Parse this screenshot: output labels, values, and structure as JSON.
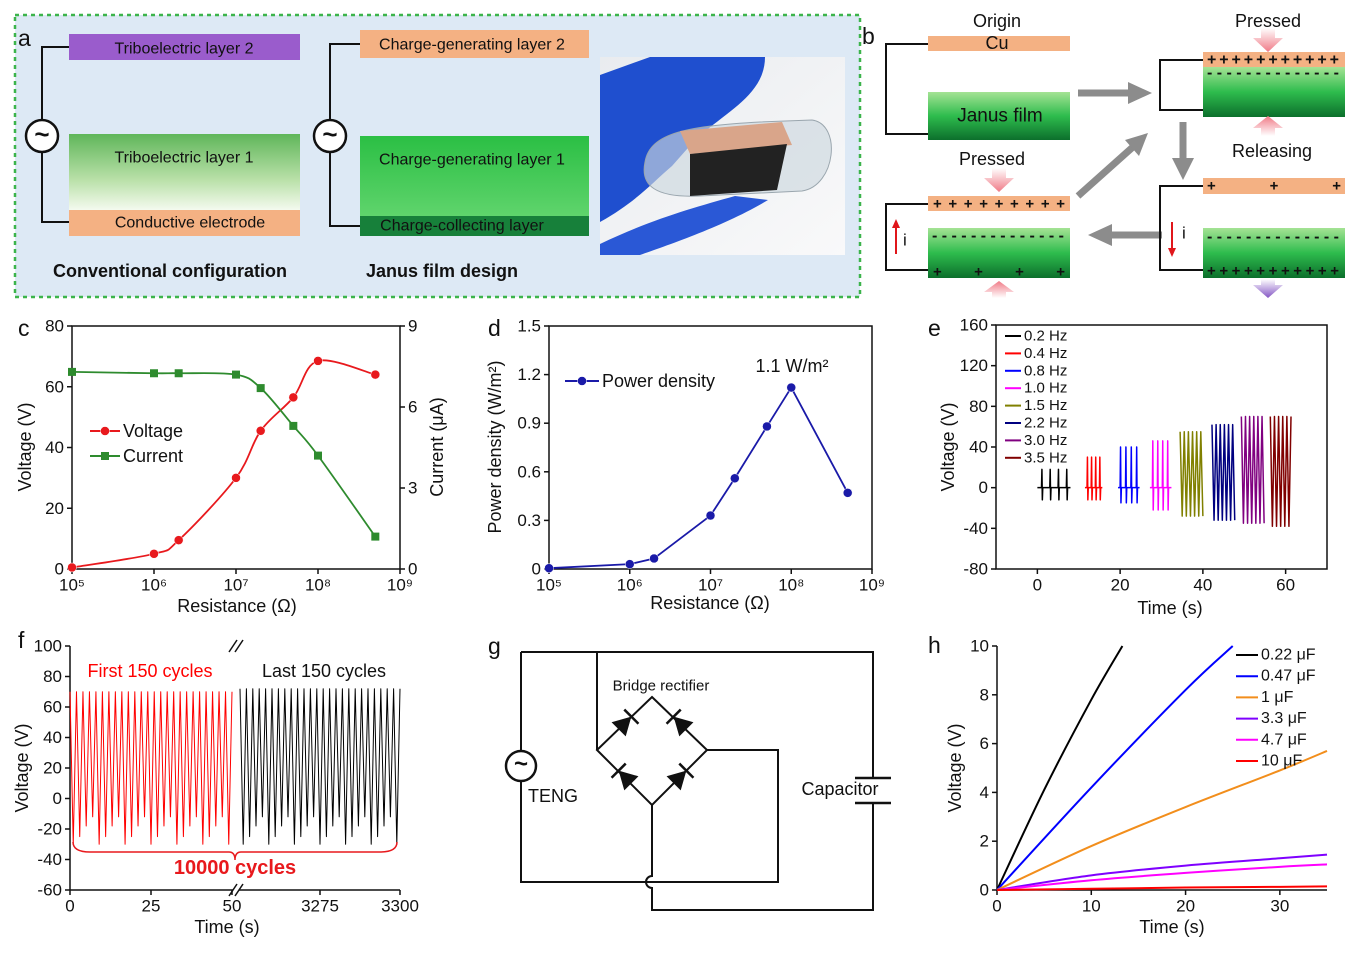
{
  "figure": {
    "a": {
      "label": "a",
      "source": "~",
      "conventional": {
        "top": "Triboelectric layer 2",
        "middle": "Triboelectric layer 1",
        "bottom": "Conductive electrode",
        "caption": "Conventional configuration"
      },
      "janus": {
        "top": "Charge-generating layer 2",
        "middle": "Charge-generating layer 1",
        "bottom": "Charge-collecting layer",
        "caption": "Janus film design"
      }
    },
    "b": {
      "label": "b",
      "origin": "Origin",
      "cu": "Cu",
      "film": "Janus film",
      "pressed": "Pressed",
      "releasing": "Releasing",
      "current": "i",
      "charges": {
        "plus_dense": "+++++++++++",
        "plus_row": "+ + + + + + + + +",
        "minus_row": "- - - - - - - - - - - - - -",
        "plus_sparse": "+ + +",
        "plus_four": "+ + + +"
      }
    },
    "g": {
      "label": "g",
      "rectifier": "Bridge rectifier",
      "source": "TENG",
      "capacitor": "Capacitor",
      "symbol": "~"
    }
  },
  "chart_data": [
    {
      "panel": "c",
      "type": "line",
      "xlog": true,
      "smooth": true,
      "x": [
        100000,
        1000000,
        2000000,
        10000000,
        20000000,
        50000000,
        100000000,
        500000000
      ],
      "series": [
        {
          "name": "Voltage",
          "color": "#e8191d",
          "marker": "circle",
          "values": [
            0.5,
            5,
            9.5,
            30,
            45.5,
            56.5,
            68.5,
            64
          ]
        },
        {
          "name": "Current",
          "color": "#2e8b2e",
          "marker": "square",
          "axis": "y2",
          "values": [
            7.3,
            7.25,
            7.25,
            7.2,
            6.7,
            5.3,
            4.2,
            1.2
          ]
        }
      ],
      "xlim": [
        100000,
        1000000000
      ],
      "xticks": [
        {
          "value": 100000,
          "label": "10⁵"
        },
        {
          "value": 1000000,
          "label": "10⁶"
        },
        {
          "value": 10000000,
          "label": "10⁷"
        },
        {
          "value": 100000000,
          "label": "10⁸"
        },
        {
          "value": 1000000000,
          "label": "10⁹"
        }
      ],
      "ylim": [
        0,
        80
      ],
      "yticks": [
        0,
        20,
        40,
        60,
        80
      ],
      "y2lim": [
        0,
        9
      ],
      "y2ticks": [
        0,
        3,
        6,
        9
      ],
      "xlabel": "Resistance (Ω)",
      "ylabel": "Voltage (V)",
      "y2label": "Current (μA)"
    },
    {
      "panel": "d",
      "type": "line",
      "xlog": true,
      "smooth": false,
      "x": [
        100000,
        1000000,
        2000000,
        10000000,
        20000000,
        50000000,
        100000000,
        500000000
      ],
      "series": [
        {
          "name": "Power density",
          "color": "#1a1aa8",
          "marker": "circle",
          "values": [
            0.005,
            0.03,
            0.065,
            0.33,
            0.56,
            0.88,
            1.12,
            0.47
          ]
        }
      ],
      "xlim": [
        100000,
        1000000000
      ],
      "xticks": [
        {
          "value": 100000,
          "label": "10⁵"
        },
        {
          "value": 1000000,
          "label": "10⁶"
        },
        {
          "value": 10000000,
          "label": "10⁷"
        },
        {
          "value": 100000000,
          "label": "10⁸"
        },
        {
          "value": 1000000000,
          "label": "10⁹"
        }
      ],
      "ylim": [
        0,
        1.5
      ],
      "yticks": [
        0,
        0.3,
        0.6,
        0.9,
        1.2,
        1.5
      ],
      "xlabel": "Resistance (Ω)",
      "ylabel": "Power density (W/m²)",
      "annotations": [
        "1.1 W/m²"
      ]
    },
    {
      "panel": "e",
      "type": "line",
      "smooth": false,
      "series": [
        {
          "name": "0.2 Hz",
          "color": "#000000",
          "x": [
            0,
            1,
            1.1,
            1.2,
            1.3,
            3,
            3.1,
            3.2,
            3.3,
            5,
            5.1,
            5.2,
            5.3,
            7,
            7.1,
            7.2,
            7.3,
            8
          ],
          "values": [
            0,
            0,
            18,
            -12,
            0,
            0,
            18,
            -12,
            0,
            0,
            18,
            -12,
            0,
            0,
            18,
            -12,
            0,
            0
          ]
        },
        {
          "name": "0.4 Hz",
          "color": "#ff0000",
          "x": [
            11.5,
            12,
            12.1,
            12.2,
            12.3,
            13,
            13.1,
            13.2,
            13.3,
            14,
            14.1,
            14.2,
            14.3,
            15,
            15.1,
            15.2,
            15.3,
            15.7
          ],
          "values": [
            0,
            0,
            30,
            -12,
            0,
            0,
            30,
            -12,
            0,
            0,
            30,
            -12,
            0,
            0,
            30,
            -12,
            0,
            0
          ]
        },
        {
          "name": "0.8 Hz",
          "color": "#0000ff",
          "x": [
            19.5,
            20,
            20.1,
            20.2,
            20.3,
            21.3,
            21.4,
            21.5,
            21.6,
            22.6,
            22.7,
            22.8,
            22.9,
            23.9,
            24,
            24.1,
            24.2,
            24.7
          ],
          "values": [
            0,
            0,
            40,
            -15,
            0,
            0,
            40,
            -15,
            0,
            0,
            40,
            -15,
            0,
            0,
            40,
            -15,
            0,
            0
          ]
        },
        {
          "name": "1.0 Hz",
          "color": "#ff00ff",
          "x": [
            27.2,
            27.8,
            27.9,
            28,
            28.1,
            29,
            29.1,
            29.2,
            29.3,
            30.2,
            30.3,
            30.4,
            30.5,
            31.4,
            31.5,
            31.6,
            31.7,
            32.4
          ],
          "values": [
            0,
            0,
            46,
            -22,
            0,
            0,
            46,
            -22,
            0,
            0,
            46,
            -22,
            0,
            0,
            46,
            -22,
            0,
            0
          ]
        },
        {
          "name": "1.5 Hz",
          "color": "#808000",
          "x": [
            34.5,
            35,
            35.5,
            36,
            36.5,
            37,
            37.5,
            38,
            38.5,
            39,
            39.5,
            40
          ],
          "values": [
            55,
            -28,
            55,
            -28,
            55,
            -28,
            55,
            -28,
            55,
            -28,
            55,
            -28
          ]
        },
        {
          "name": "2.2 Hz",
          "color": "#000080",
          "x": [
            42.2,
            42.7,
            43.2,
            43.7,
            44.2,
            44.7,
            45.2,
            45.7,
            46.2,
            46.7,
            47.2,
            47.7
          ],
          "values": [
            62,
            -32,
            62,
            -32,
            62,
            -32,
            62,
            -32,
            62,
            -32,
            62,
            -32
          ]
        },
        {
          "name": "3.0 Hz",
          "color": "#800080",
          "x": [
            49.3,
            49.8,
            50.3,
            50.8,
            51.3,
            51.8,
            52.3,
            52.8,
            53.3,
            53.8,
            54.3,
            54.8
          ],
          "values": [
            70,
            -35,
            70,
            -35,
            70,
            -35,
            70,
            -35,
            70,
            -35,
            70,
            -35
          ]
        },
        {
          "name": "3.5 Hz",
          "color": "#800000",
          "x": [
            56.3,
            56.8,
            57.3,
            57.8,
            58.3,
            58.8,
            59.3,
            59.8,
            60.3,
            60.8,
            61.3
          ],
          "values": [
            70,
            -38,
            70,
            -38,
            70,
            -38,
            70,
            -38,
            70,
            -38,
            70
          ]
        }
      ],
      "xlim": [
        -10,
        70
      ],
      "xticks": [
        0,
        20,
        40,
        60
      ],
      "ylim": [
        -80,
        160
      ],
      "yticks": [
        -80,
        -40,
        0,
        40,
        80,
        120,
        160
      ],
      "xlabel": "Time (s)",
      "ylabel": "Voltage (V)"
    },
    {
      "panel": "f",
      "type": "line",
      "smooth": false,
      "xbreak": [
        50,
        3250
      ],
      "series": [
        {
          "name": "First 150 cycles",
          "color": "#ff0000",
          "x": [
            0,
            1,
            2,
            3,
            4,
            5,
            6,
            7,
            8,
            9,
            10,
            11,
            12,
            13,
            14,
            15,
            16,
            17,
            18,
            19,
            20,
            21,
            22,
            23,
            24,
            25,
            26,
            27,
            28,
            29,
            30,
            31,
            32,
            33,
            34,
            35,
            36,
            37,
            38,
            39,
            40,
            41,
            42,
            43,
            44,
            45,
            46,
            47,
            48,
            49,
            50
          ],
          "values": [
            70,
            -30,
            70,
            -25,
            70,
            -18,
            70,
            -12,
            70,
            -30,
            70,
            -25,
            70,
            -18,
            70,
            -12,
            70,
            -30,
            70,
            -25,
            70,
            -18,
            70,
            -12,
            70,
            -30,
            70,
            -25,
            70,
            -18,
            70,
            -12,
            70,
            -30,
            70,
            -25,
            70,
            -18,
            70,
            -12,
            70,
            -30,
            70,
            -25,
            70,
            -18,
            70,
            -12,
            70,
            -30,
            70
          ]
        },
        {
          "name": "Last 150 cycles",
          "color": "#000000",
          "x": [
            3250,
            3251,
            3252,
            3253,
            3254,
            3255,
            3256,
            3257,
            3258,
            3259,
            3260,
            3261,
            3262,
            3263,
            3264,
            3265,
            3266,
            3267,
            3268,
            3269,
            3270,
            3271,
            3272,
            3273,
            3274,
            3275,
            3276,
            3277,
            3278,
            3279,
            3280,
            3281,
            3282,
            3283,
            3284,
            3285,
            3286,
            3287,
            3288,
            3289,
            3290,
            3291,
            3292,
            3293,
            3294,
            3295,
            3296,
            3297,
            3298,
            3299,
            3300
          ],
          "values": [
            72,
            -30,
            72,
            -25,
            72,
            -18,
            72,
            -12,
            72,
            -30,
            72,
            -25,
            72,
            -18,
            72,
            -12,
            72,
            -30,
            72,
            -25,
            72,
            -18,
            72,
            -12,
            72,
            -30,
            72,
            -25,
            72,
            -18,
            72,
            -12,
            72,
            -30,
            72,
            -25,
            72,
            -18,
            72,
            -12,
            72,
            -30,
            72,
            -25,
            72,
            -18,
            72,
            -12,
            72,
            -30,
            72
          ]
        }
      ],
      "xlim": [
        0,
        3300
      ],
      "xticks": [
        0,
        25,
        50,
        3275,
        3300
      ],
      "ylim": [
        -60,
        100
      ],
      "yticks": [
        -60,
        -40,
        -20,
        0,
        20,
        40,
        60,
        80,
        100
      ],
      "xlabel": "Time (s)",
      "ylabel": "Voltage (V)",
      "annotations": [
        "10000 cycles"
      ]
    },
    {
      "panel": "h",
      "type": "line",
      "smooth": true,
      "series": [
        {
          "name": "0.22 μF",
          "color": "#000000",
          "x": [
            0,
            5,
            10,
            13.3
          ],
          "values": [
            0,
            4.1,
            7.8,
            10
          ]
        },
        {
          "name": "0.47 μF",
          "color": "#0000ff",
          "x": [
            0,
            10,
            20,
            25
          ],
          "values": [
            0,
            4.2,
            8.2,
            10
          ]
        },
        {
          "name": "1 μF",
          "color": "#f28e1c",
          "x": [
            0,
            10,
            20,
            30,
            35
          ],
          "values": [
            0,
            1.8,
            3.4,
            4.9,
            5.7
          ]
        },
        {
          "name": "3.3 μF",
          "color": "#7f00ff",
          "x": [
            0,
            10,
            20,
            30,
            35
          ],
          "values": [
            0,
            0.6,
            1,
            1.3,
            1.45
          ]
        },
        {
          "name": "4.7 μF",
          "color": "#ff00ff",
          "x": [
            0,
            10,
            20,
            30,
            35
          ],
          "values": [
            0,
            0.4,
            0.7,
            0.95,
            1.05
          ]
        },
        {
          "name": "10 μF",
          "color": "#ff0000",
          "x": [
            0,
            10,
            20,
            30,
            35
          ],
          "values": [
            0,
            0.05,
            0.1,
            0.13,
            0.15
          ]
        }
      ],
      "xlim": [
        0,
        35
      ],
      "xticks": [
        0,
        10,
        20,
        30
      ],
      "ylim": [
        0,
        10
      ],
      "yticks": [
        0,
        2,
        4,
        6,
        8,
        10
      ],
      "xlabel": "Time (s)",
      "ylabel": "Voltage (V)"
    }
  ]
}
